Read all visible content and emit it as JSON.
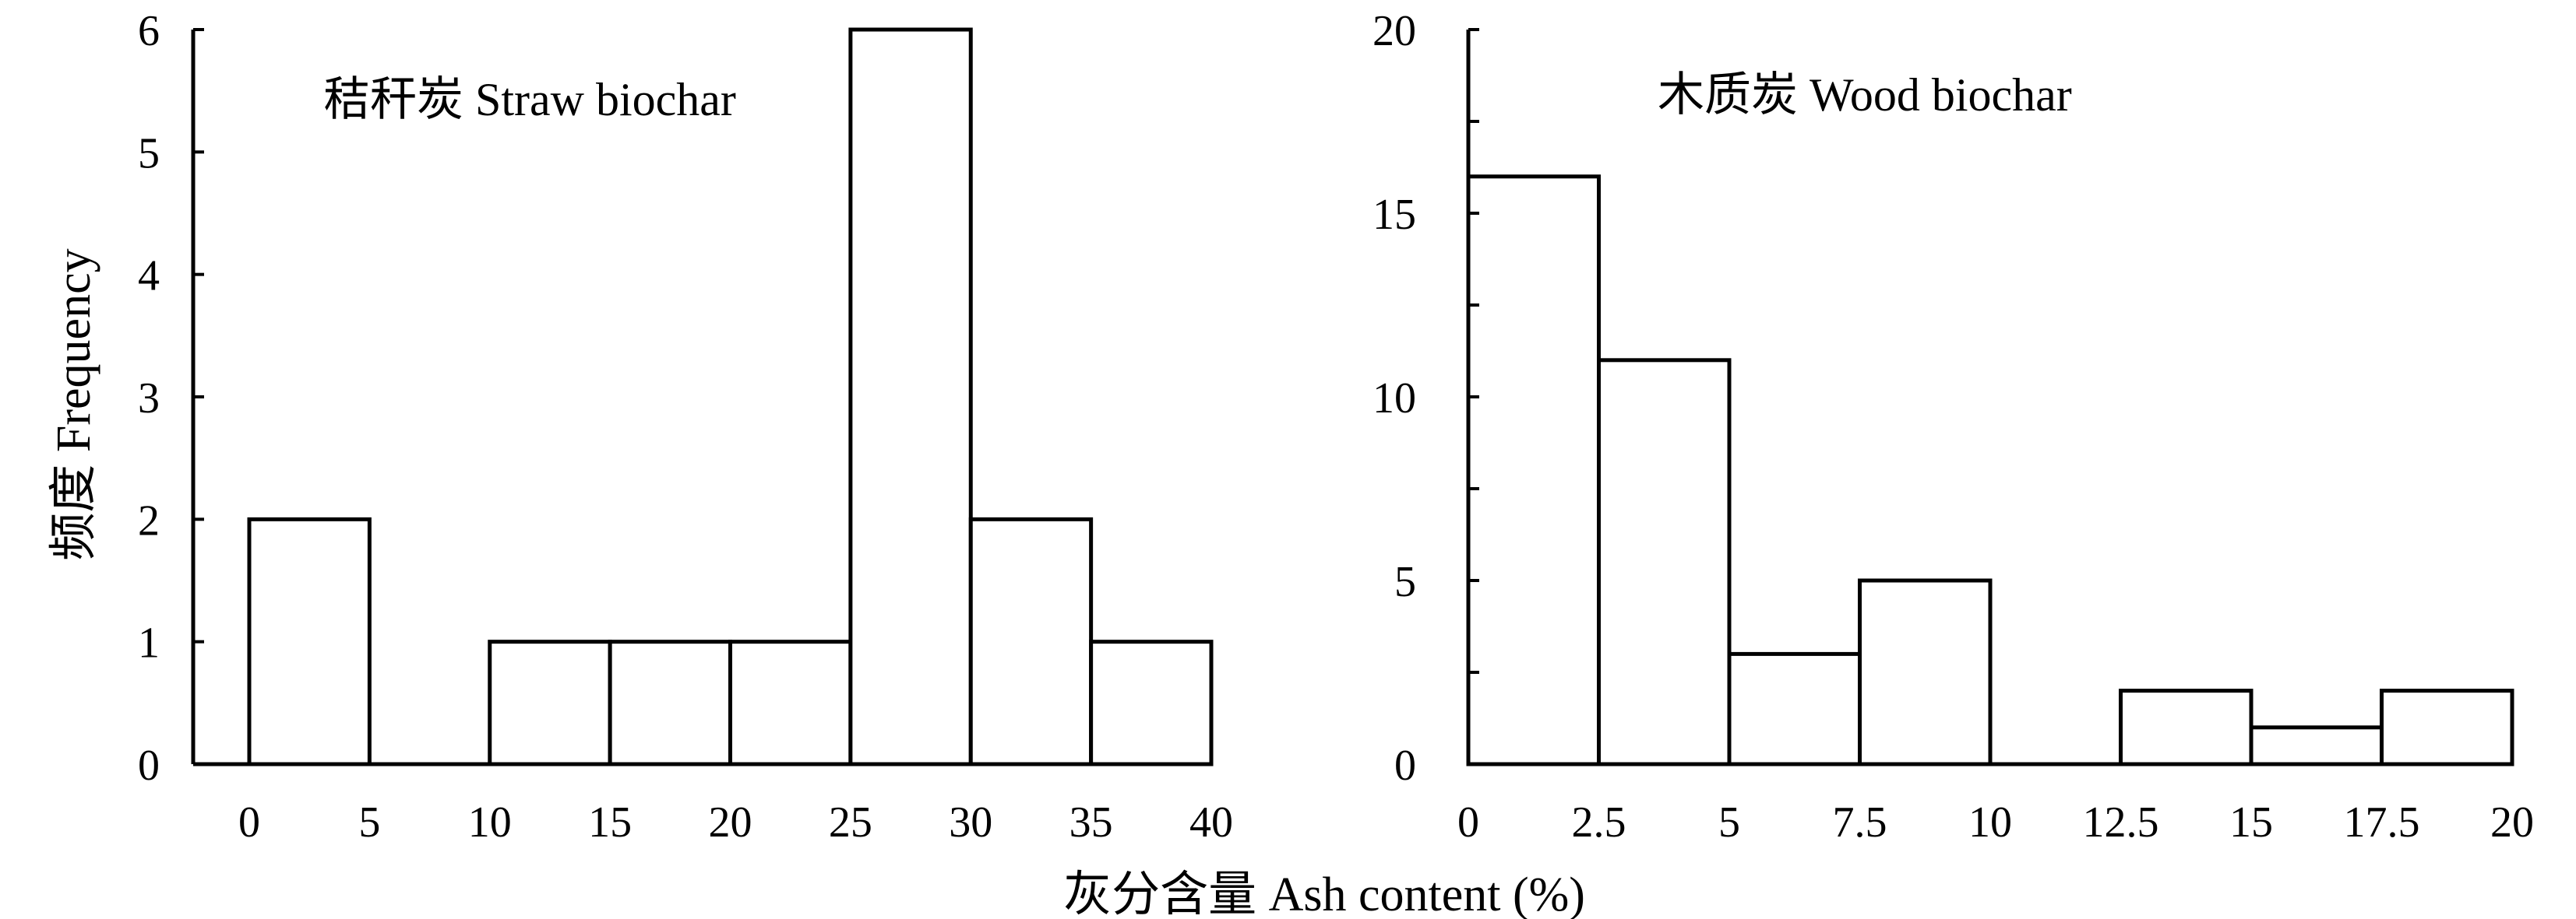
{
  "chart_data": [
    {
      "type": "bar",
      "title": "秸秆炭 Straw biochar",
      "x_ticks": [
        "0",
        "5",
        "10",
        "15",
        "20",
        "25",
        "30",
        "35",
        "40"
      ],
      "y_ticks": [
        "0",
        "1",
        "2",
        "3",
        "4",
        "5",
        "6"
      ],
      "xlim": [
        0,
        40
      ],
      "ylim": [
        0,
        6
      ],
      "bars": [
        {
          "from": 0,
          "to": 5,
          "value": 2
        },
        {
          "from": 10,
          "to": 15,
          "value": 1
        },
        {
          "from": 15,
          "to": 20,
          "value": 1
        },
        {
          "from": 20,
          "to": 25,
          "value": 1
        },
        {
          "from": 25,
          "to": 30,
          "value": 6
        },
        {
          "from": 30,
          "to": 35,
          "value": 2
        },
        {
          "from": 35,
          "to": 40,
          "value": 1
        }
      ]
    },
    {
      "type": "bar",
      "title": "木质炭 Wood biochar",
      "x_ticks": [
        "0",
        "2.5",
        "5",
        "7.5",
        "10",
        "12.5",
        "15",
        "17.5",
        "20"
      ],
      "y_ticks": [
        "0",
        "5",
        "10",
        "15",
        "20"
      ],
      "xlim": [
        0,
        20
      ],
      "ylim": [
        0,
        20
      ],
      "bars": [
        {
          "from": 0,
          "to": 2.5,
          "value": 16
        },
        {
          "from": 2.5,
          "to": 5,
          "value": 11
        },
        {
          "from": 5,
          "to": 7.5,
          "value": 3
        },
        {
          "from": 7.5,
          "to": 10,
          "value": 5
        },
        {
          "from": 12.5,
          "to": 15,
          "value": 2
        },
        {
          "from": 15,
          "to": 17.5,
          "value": 1
        },
        {
          "from": 17.5,
          "to": 20,
          "value": 2
        }
      ]
    }
  ],
  "ylabel": "频度 Frequency",
  "xlabel": "灰分含量 Ash content (%)"
}
